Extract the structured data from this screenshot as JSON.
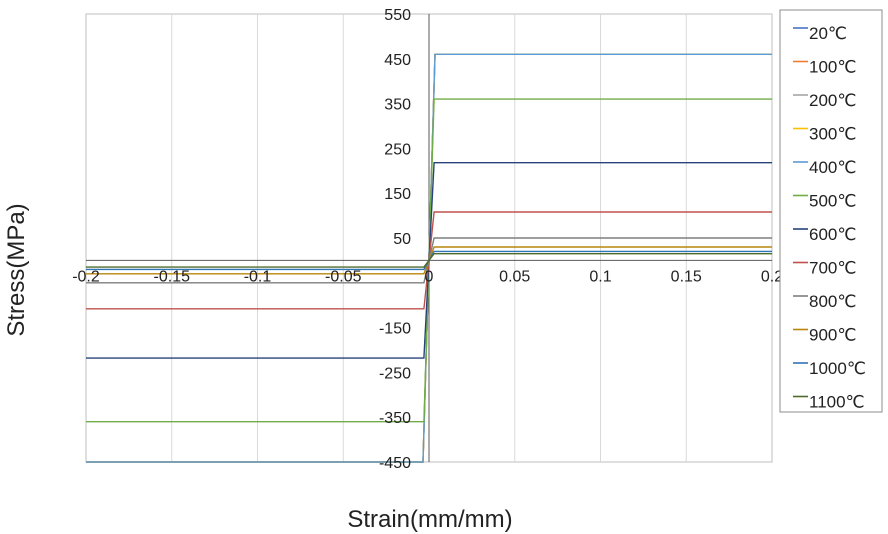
{
  "chart_data": {
    "type": "line",
    "title": "",
    "xlabel": "Strain(mm/mm)",
    "ylabel": "Stress(MPa)",
    "xlim": [
      -0.2,
      0.2
    ],
    "ylim": [
      -450,
      550
    ],
    "x_ticks": [
      -0.2,
      -0.15,
      -0.1,
      -0.05,
      0,
      0.05,
      0.1,
      0.15,
      0.2
    ],
    "x_tick_labels": [
      "-0.2",
      "-0.15",
      "-0.1",
      "-0.05",
      "0",
      "0.05",
      "0.1",
      "0.15",
      "0.2"
    ],
    "y_ticks": [
      -450,
      -350,
      -250,
      -150,
      50,
      150,
      250,
      350,
      450,
      550
    ],
    "y_tick_labels": [
      "-450",
      "-350",
      "-250",
      "-150",
      "50",
      "150",
      "250",
      "350",
      "450",
      "550"
    ],
    "grid": "vertical",
    "legend_position": "right",
    "series": [
      {
        "name": "20℃",
        "color": "#4472c4",
        "x": [
          -0.2,
          -0.0035,
          0.0035,
          0.2
        ],
        "y": [
          -460,
          -460,
          460,
          460
        ]
      },
      {
        "name": "100℃",
        "color": "#ed7d31",
        "x": [
          -0.2,
          -0.0035,
          0.0035,
          0.2
        ],
        "y": [
          -460,
          -460,
          460,
          460
        ]
      },
      {
        "name": "200℃",
        "color": "#a5a5a5",
        "x": [
          -0.2,
          -0.0035,
          0.0035,
          0.2
        ],
        "y": [
          -460,
          -460,
          460,
          460
        ]
      },
      {
        "name": "300℃",
        "color": "#ffc000",
        "x": [
          -0.2,
          -0.0035,
          0.0035,
          0.2
        ],
        "y": [
          -460,
          -460,
          460,
          460
        ]
      },
      {
        "name": "400℃",
        "color": "#5b9bd5",
        "x": [
          -0.2,
          -0.0035,
          0.0035,
          0.2
        ],
        "y": [
          -460,
          -460,
          460,
          460
        ]
      },
      {
        "name": "500℃",
        "color": "#70ad47",
        "x": [
          -0.2,
          -0.003,
          0.003,
          0.2
        ],
        "y": [
          -360,
          -360,
          360,
          360
        ]
      },
      {
        "name": "600℃",
        "color": "#264478",
        "x": [
          -0.2,
          -0.003,
          0.003,
          0.2
        ],
        "y": [
          -218,
          -218,
          218,
          218
        ]
      },
      {
        "name": "700℃",
        "color": "#c0504d",
        "x": [
          -0.2,
          -0.003,
          0.003,
          0.2
        ],
        "y": [
          -108,
          -108,
          108,
          108
        ]
      },
      {
        "name": "800℃",
        "color": "#7f7f7f",
        "x": [
          -0.2,
          -0.003,
          0.003,
          0.2
        ],
        "y": [
          -50,
          -50,
          50,
          50
        ]
      },
      {
        "name": "900℃",
        "color": "#b8860b",
        "x": [
          -0.2,
          -0.003,
          0.003,
          0.2
        ],
        "y": [
          -30,
          -30,
          30,
          30
        ]
      },
      {
        "name": "1000℃",
        "color": "#2e75b6",
        "x": [
          -0.2,
          -0.003,
          0.003,
          0.2
        ],
        "y": [
          -20,
          -20,
          20,
          20
        ]
      },
      {
        "name": "1100℃",
        "color": "#4e6b2e",
        "x": [
          -0.2,
          -0.003,
          0.003,
          0.2
        ],
        "y": [
          -15,
          -15,
          15,
          15
        ]
      }
    ]
  }
}
